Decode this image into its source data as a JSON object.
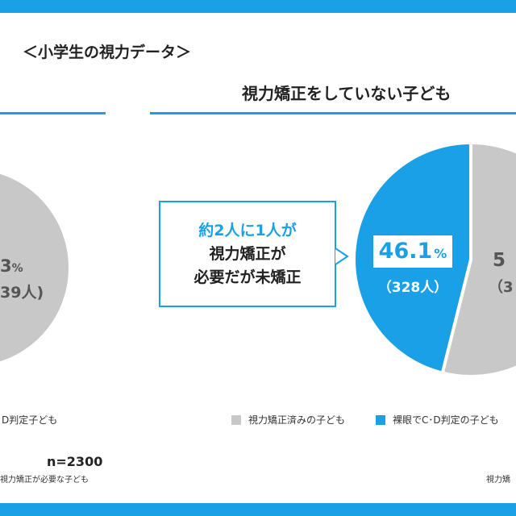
{
  "heading": "＜小学生の視力データ＞",
  "right_title": "視力矯正をしていない子ども",
  "callout": {
    "line1": "約2人に1人が",
    "line2": "視力矯正が",
    "line3": "必要だが未矯正"
  },
  "left_pie": {
    "pct_visible": "3",
    "pct_unit": "%",
    "count_visible": "39人)",
    "legend_label": "D判定子ども"
  },
  "right_pie": {
    "blue_pct_num": "46.1",
    "blue_pct_unit": "%",
    "blue_count": "（328人）",
    "gray_pct_visible": "5",
    "gray_count_visible": "（3"
  },
  "legend": {
    "item1": "視力矯正済みの子ども",
    "item2": "裸眼でC･D判定の子ども"
  },
  "n_label": "n=2300",
  "note_left": "視力矯正が必要な子ども",
  "note_right": "視力矯",
  "colors": {
    "accent": "#1aa0e6",
    "gray": "#c8c8c8",
    "text": "#222222"
  },
  "chart_data": [
    {
      "type": "pie",
      "title": "視力矯正をしていない子ども",
      "slices": [
        {
          "label": "裸眼でC･D判定の子ども",
          "value": 46.1,
          "count": 328,
          "color": "#1aa0e6"
        },
        {
          "label": "視力矯正済みの子ども",
          "value": 53.9,
          "color": "#c8c8c8"
        }
      ]
    }
  ]
}
